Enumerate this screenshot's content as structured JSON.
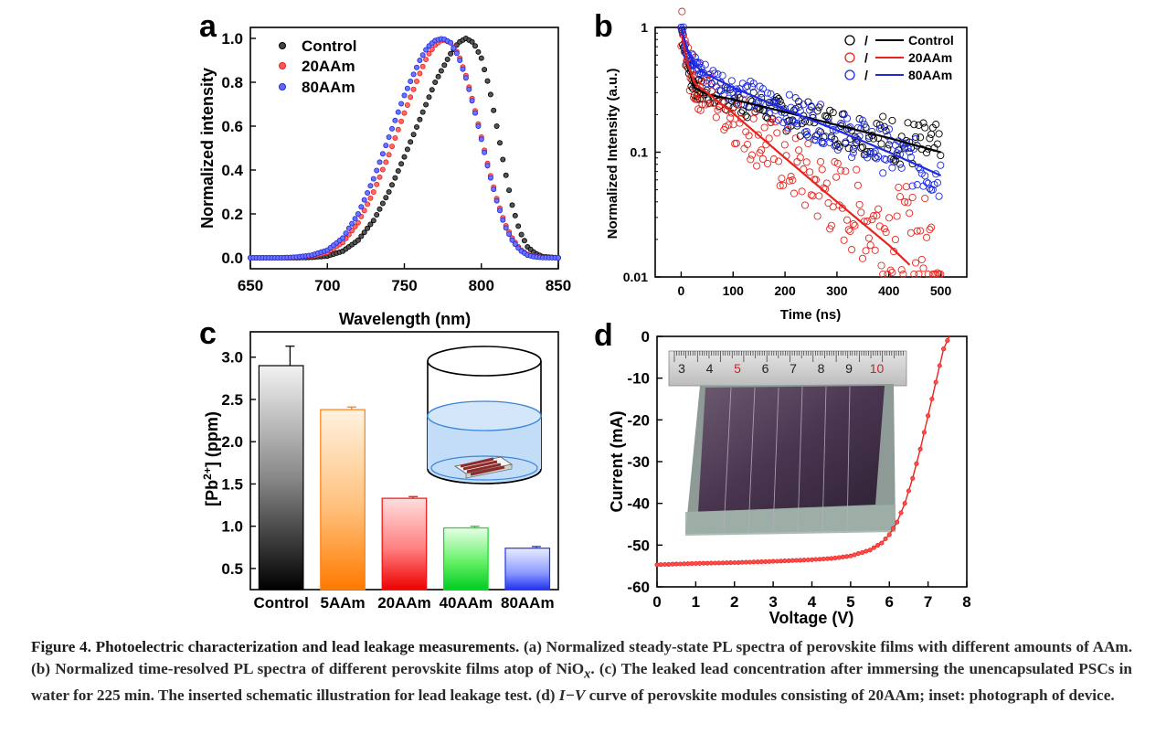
{
  "caption": {
    "lead": "Figure 4. Photoelectric characterization and lead leakage measurements.",
    "body_part1": "(a) Normalized steady-state PL spectra of perovskite films with different amounts of AAm. (b) Normalized time-resolved PL spectra of different perovskite films atop of NiO",
    "body_sub": "x",
    "body_part2": ". (c) The leaked lead concentration after immersing the unencapsulated PSCs in water for 225 min. The inserted schematic illustration for lead leakage test. (d) ",
    "body_italic": "I−V",
    "body_part3": " curve of perovskite modules consisting of 20AAm; inset: photograph of device."
  },
  "colors": {
    "control": "#000000",
    "aam20": "#e8231c",
    "aam80": "#1d2ae0"
  },
  "chart_data": [
    {
      "panel": "a",
      "type": "scatter",
      "xlabel": "Wavelength (nm)",
      "ylabel": "Normalized intensity",
      "xlim": [
        650,
        850
      ],
      "ylim": [
        -0.05,
        1.05
      ],
      "xticks": [
        "650",
        "700",
        "750",
        "800",
        "850"
      ],
      "yticks": [
        "0.0",
        "0.2",
        "0.4",
        "0.6",
        "0.8",
        "1.0"
      ],
      "legend_position": "top-left",
      "series": [
        {
          "name": "Control",
          "color": "#000000",
          "x": [
            650,
            660,
            670,
            680,
            690,
            700,
            710,
            720,
            730,
            740,
            750,
            760,
            770,
            780,
            785,
            790,
            795,
            800,
            805,
            810,
            815,
            820,
            825,
            830,
            835,
            840,
            850
          ],
          "y": [
            0,
            0,
            0,
            0,
            0.002,
            0.008,
            0.03,
            0.08,
            0.17,
            0.3,
            0.46,
            0.63,
            0.8,
            0.93,
            0.98,
            1.0,
            0.98,
            0.91,
            0.78,
            0.6,
            0.41,
            0.24,
            0.12,
            0.05,
            0.02,
            0.005,
            0
          ]
        },
        {
          "name": "20AAm",
          "color": "#e8231c",
          "x": [
            650,
            660,
            670,
            680,
            690,
            700,
            710,
            720,
            730,
            740,
            750,
            760,
            765,
            770,
            775,
            780,
            785,
            790,
            795,
            800,
            805,
            810,
            815,
            820,
            825,
            830,
            835,
            840,
            850
          ],
          "y": [
            0,
            0,
            0,
            0.002,
            0.008,
            0.025,
            0.07,
            0.16,
            0.3,
            0.47,
            0.66,
            0.84,
            0.92,
            0.97,
            0.995,
            0.98,
            0.93,
            0.83,
            0.7,
            0.55,
            0.4,
            0.27,
            0.16,
            0.09,
            0.04,
            0.015,
            0.005,
            0.002,
            0
          ]
        },
        {
          "name": "80AAm",
          "color": "#1d2ae0",
          "x": [
            650,
            660,
            670,
            680,
            690,
            700,
            710,
            720,
            730,
            740,
            750,
            760,
            765,
            770,
            775,
            780,
            785,
            790,
            795,
            800,
            805,
            810,
            815,
            820,
            825,
            830,
            835,
            840,
            850
          ],
          "y": [
            0,
            0,
            0,
            0.003,
            0.012,
            0.035,
            0.09,
            0.2,
            0.36,
            0.55,
            0.74,
            0.9,
            0.96,
            0.99,
            1.0,
            0.98,
            0.92,
            0.82,
            0.69,
            0.54,
            0.39,
            0.26,
            0.15,
            0.08,
            0.035,
            0.012,
            0.004,
            0.001,
            0
          ]
        }
      ]
    },
    {
      "panel": "b",
      "type": "scatter",
      "xlabel": "Time (ns)",
      "ylabel": "Normalized Intensity (a.u.)",
      "xlim": [
        -50,
        550
      ],
      "ylim": [
        0.01,
        1
      ],
      "yscale": "log",
      "xticks": [
        "0",
        "100",
        "200",
        "300",
        "400",
        "500"
      ],
      "yticks": [
        "0.01",
        "0.1",
        "1"
      ],
      "legend_position": "top-right",
      "legend_separator": "/",
      "series": [
        {
          "name": "Control",
          "color": "#000000",
          "x": [
            0,
            10,
            25,
            50,
            100,
            200,
            300,
            400,
            500
          ],
          "y": [
            1.0,
            0.55,
            0.33,
            0.29,
            0.26,
            0.2,
            0.16,
            0.13,
            0.1
          ]
        },
        {
          "name": "20AAm",
          "color": "#e8231c",
          "x": [
            0,
            10,
            25,
            50,
            100,
            150,
            200,
            250,
            300,
            350,
            400,
            450,
            500
          ],
          "y": [
            1.0,
            0.55,
            0.36,
            0.3,
            0.2,
            0.13,
            0.085,
            0.058,
            0.042,
            0.03,
            0.024,
            0.019,
            0.015
          ]
        },
        {
          "name": "80AAm",
          "color": "#1d2ae0",
          "x": [
            0,
            10,
            25,
            50,
            100,
            200,
            300,
            400,
            500
          ],
          "y": [
            1.0,
            0.7,
            0.5,
            0.42,
            0.33,
            0.22,
            0.15,
            0.1,
            0.065
          ]
        }
      ],
      "fits": [
        {
          "name": "Control",
          "color": "#000000",
          "x": [
            0,
            10,
            25,
            50,
            100,
            200,
            300,
            400,
            500
          ],
          "y": [
            1.0,
            0.55,
            0.33,
            0.29,
            0.265,
            0.21,
            0.165,
            0.13,
            0.1
          ]
        },
        {
          "name": "20AAm",
          "color": "#e8231c",
          "x": [
            0,
            10,
            25,
            50,
            100,
            200,
            300,
            400,
            440
          ],
          "y": [
            1.0,
            0.55,
            0.36,
            0.3,
            0.205,
            0.09,
            0.04,
            0.018,
            0.0125
          ]
        },
        {
          "name": "80AAm",
          "color": "#1d2ae0",
          "x": [
            0,
            10,
            25,
            50,
            100,
            200,
            300,
            400,
            500
          ],
          "y": [
            1.0,
            0.7,
            0.5,
            0.42,
            0.33,
            0.22,
            0.15,
            0.1,
            0.065
          ]
        }
      ]
    },
    {
      "panel": "c",
      "type": "bar",
      "ylabel": "[Pb2+] (ppm)",
      "ylim": [
        0.25,
        3.3
      ],
      "yticks": [
        "0.5",
        "1.0",
        "1.5",
        "2.0",
        "2.5",
        "3.0"
      ],
      "categories": [
        "Control",
        "5AAm",
        "20AAm",
        "40AAm",
        "80AAm"
      ],
      "values": [
        2.9,
        2.38,
        1.33,
        0.98,
        0.74
      ],
      "errors": [
        0.23,
        0.03,
        0.02,
        0.02,
        0.02
      ],
      "bar_colors": [
        "#000000",
        "#ff7f0e",
        "#ee1111",
        "#11dd22",
        "#2233ee"
      ]
    },
    {
      "panel": "d",
      "type": "line",
      "xlabel": "Voltage (V)",
      "ylabel": "Current (mA)",
      "xlim": [
        0,
        8
      ],
      "ylim": [
        -60,
        0
      ],
      "xticks": [
        "0",
        "1",
        "2",
        "3",
        "4",
        "5",
        "6",
        "7",
        "8"
      ],
      "yticks": [
        "0",
        "-10",
        "-20",
        "-30",
        "-40",
        "-50",
        "-60"
      ],
      "series": [
        {
          "name": "20AAm",
          "color": "#e8231c",
          "x": [
            0,
            1,
            2,
            3,
            4,
            4.5,
            5,
            5.5,
            5.8,
            6,
            6.2,
            6.4,
            6.6,
            6.8,
            7,
            7.2,
            7.4,
            7.55
          ],
          "y": [
            -54.7,
            -54.4,
            -54.2,
            -53.9,
            -53.5,
            -53.2,
            -52.6,
            -51.2,
            -49.5,
            -47.5,
            -44.5,
            -40,
            -34,
            -27,
            -19,
            -11,
            -3,
            0
          ]
        }
      ]
    }
  ],
  "panels": {
    "a": {
      "letter": "a"
    },
    "b": {
      "letter": "b"
    },
    "c": {
      "letter": "c"
    },
    "d": {
      "letter": "d"
    }
  },
  "ruler_labels": [
    "3",
    "4",
    "5",
    "6",
    "7",
    "8",
    "9",
    "10"
  ]
}
